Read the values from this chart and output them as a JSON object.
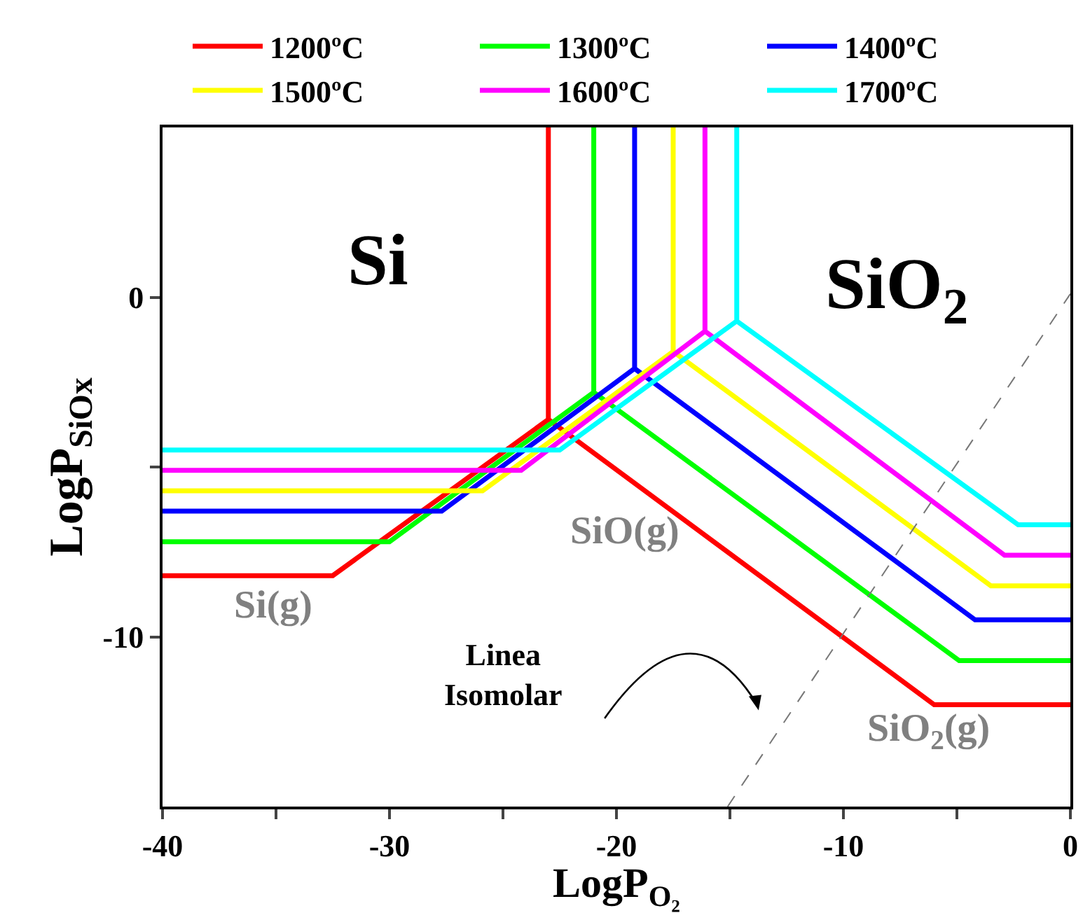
{
  "chart_data": {
    "type": "line",
    "xlabel": "LogP$_{O₂}$",
    "ylabel": "LogP$_{SiOx}$",
    "xlim": [
      -40,
      0
    ],
    "ylim": [
      -15,
      5
    ],
    "xticks": [
      -40,
      {
        "value": -35,
        "label": null
      },
      -30,
      {
        "value": -25,
        "label": null
      },
      -20,
      {
        "value": -15,
        "label": null
      },
      -10,
      {
        "value": -5,
        "label": null
      },
      0
    ],
    "yticks": [
      {
        "value": -5,
        "label": null
      },
      -10,
      0
    ],
    "grid": false,
    "legend": "top",
    "marker": "none",
    "line_style": "solid",
    "series": [
      {
        "name": "1200ºC",
        "color": "#ff0000",
        "x": [
          -40,
          -32.5,
          -23,
          -23,
          -23,
          -6,
          0
        ],
        "values": [
          -8.2,
          -8.2,
          -3.6,
          5,
          -3.6,
          -12,
          -12
        ]
      },
      {
        "name": "1300ºC",
        "color": "#00ff00",
        "x": [
          -40,
          -30,
          -21,
          -21,
          -21,
          -4.9,
          0
        ],
        "values": [
          -7.2,
          -7.2,
          -2.8,
          5,
          -2.8,
          -10.7,
          -10.7
        ]
      },
      {
        "name": "1400ºC",
        "color": "#0000ff",
        "x": [
          -40,
          -27.7,
          -19.2,
          -19.2,
          -19.2,
          -4.2,
          0
        ],
        "values": [
          -6.3,
          -6.3,
          -2.1,
          5,
          -2.1,
          -9.5,
          -9.5
        ]
      },
      {
        "name": "1500ºC",
        "color": "#ffff00",
        "x": [
          -40,
          -25.9,
          -17.5,
          -17.5,
          -17.5,
          -3.5,
          0
        ],
        "values": [
          -5.7,
          -5.7,
          -1.6,
          5,
          -1.6,
          -8.5,
          -8.5
        ]
      },
      {
        "name": "1600ºC",
        "color": "#ff00ff",
        "x": [
          -40,
          -24.2,
          -16.1,
          -16.1,
          -16.1,
          -2.9,
          0
        ],
        "values": [
          -5.1,
          -5.1,
          -1,
          5,
          -1,
          -7.6,
          -7.6
        ]
      },
      {
        "name": "1700ºC",
        "color": "#00ffff",
        "x": [
          -40,
          -22.5,
          -14.7,
          -14.7,
          -14.7,
          -2.3,
          0
        ],
        "values": [
          -4.5,
          -4.5,
          -0.7,
          5,
          -0.7,
          -6.7,
          -6.7
        ]
      },
      {
        "color": "#777777",
        "line_style": "dashed",
        "x": [
          -15.1,
          0
        ],
        "values": [
          -15,
          0.1
        ]
      }
    ],
    "annotations": [
      "Si",
      "SiO$_{2}$",
      "SiO(g)",
      "Si(g)",
      "SiO$_{2}$(g)",
      "Linea\nIsomolar"
    ]
  }
}
